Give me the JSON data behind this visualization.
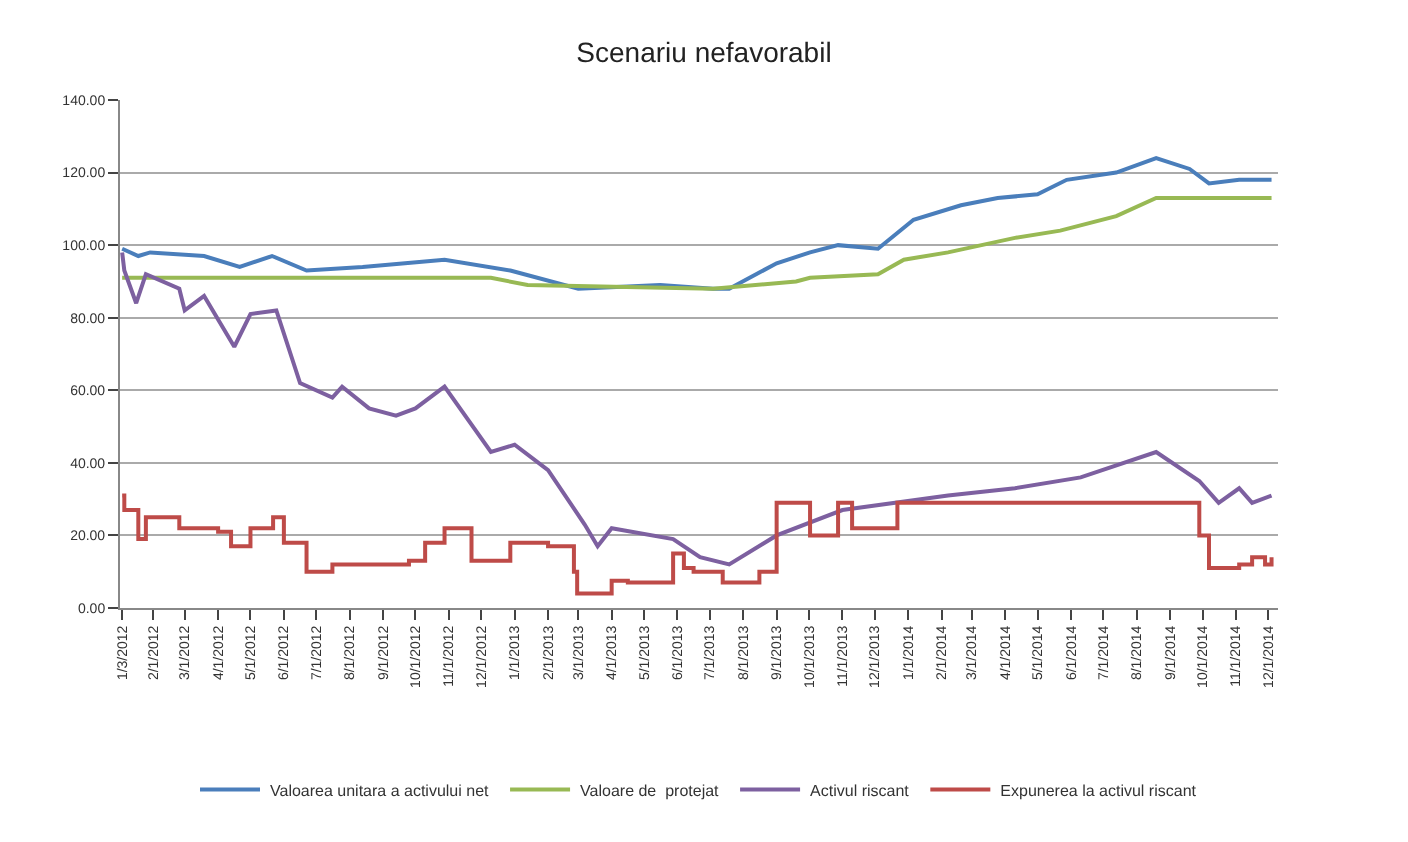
{
  "chart_data": {
    "type": "line",
    "title": "Scenariu nefavorabil",
    "legend": "bottom",
    "grid": "y",
    "ylim": [
      0,
      140
    ],
    "yticks": [
      {
        "value": 0,
        "label": "0.00"
      },
      {
        "value": 20,
        "label": "20.00"
      },
      {
        "value": 40,
        "label": "40.00"
      },
      {
        "value": 60,
        "label": "60.00"
      },
      {
        "value": 80,
        "label": "80.00"
      },
      {
        "value": 100,
        "label": "100.00"
      },
      {
        "value": 120,
        "label": "120.00"
      },
      {
        "value": 140,
        "label": "140.00"
      }
    ],
    "xlim": [
      "2012-01-01",
      "2014-12-10"
    ],
    "xticks": [
      {
        "value": "2012-01-03",
        "label": "1/3/2012"
      },
      {
        "value": "2012-02-01",
        "label": "2/1/2012"
      },
      {
        "value": "2012-03-01",
        "label": "3/1/2012"
      },
      {
        "value": "2012-04-01",
        "label": "4/1/2012"
      },
      {
        "value": "2012-05-01",
        "label": "5/1/2012"
      },
      {
        "value": "2012-06-01",
        "label": "6/1/2012"
      },
      {
        "value": "2012-07-01",
        "label": "7/1/2012"
      },
      {
        "value": "2012-08-01",
        "label": "8/1/2012"
      },
      {
        "value": "2012-09-01",
        "label": "9/1/2012"
      },
      {
        "value": "2012-10-01",
        "label": "10/1/2012"
      },
      {
        "value": "2012-11-01",
        "label": "11/1/2012"
      },
      {
        "value": "2012-12-01",
        "label": "12/1/2012"
      },
      {
        "value": "2013-01-01",
        "label": "1/1/2013"
      },
      {
        "value": "2013-02-01",
        "label": "2/1/2013"
      },
      {
        "value": "2013-03-01",
        "label": "3/1/2013"
      },
      {
        "value": "2013-04-01",
        "label": "4/1/2013"
      },
      {
        "value": "2013-05-01",
        "label": "5/1/2013"
      },
      {
        "value": "2013-06-01",
        "label": "6/1/2013"
      },
      {
        "value": "2013-07-01",
        "label": "7/1/2013"
      },
      {
        "value": "2013-08-01",
        "label": "8/1/2013"
      },
      {
        "value": "2013-09-01",
        "label": "9/1/2013"
      },
      {
        "value": "2013-10-01",
        "label": "10/1/2013"
      },
      {
        "value": "2013-11-01",
        "label": "11/1/2013"
      },
      {
        "value": "2013-12-01",
        "label": "12/1/2013"
      },
      {
        "value": "2014-01-01",
        "label": "1/1/2014"
      },
      {
        "value": "2014-02-01",
        "label": "2/1/2014"
      },
      {
        "value": "2014-03-01",
        "label": "3/1/2014"
      },
      {
        "value": "2014-04-01",
        "label": "4/1/2014"
      },
      {
        "value": "2014-05-01",
        "label": "5/1/2014"
      },
      {
        "value": "2014-06-01",
        "label": "6/1/2014"
      },
      {
        "value": "2014-07-01",
        "label": "7/1/2014"
      },
      {
        "value": "2014-08-01",
        "label": "8/1/2014"
      },
      {
        "value": "2014-09-01",
        "label": "9/1/2014"
      },
      {
        "value": "2014-10-01",
        "label": "10/1/2014"
      },
      {
        "value": "2014-11-01",
        "label": "11/1/2014"
      },
      {
        "value": "2014-12-01",
        "label": "12/1/2014"
      }
    ],
    "series": [
      {
        "name": "Valoarea unitara a activului net",
        "color": "#4a7ebb",
        "x": [
          "2012-01-03",
          "2012-01-18",
          "2012-01-29",
          "2012-03-19",
          "2012-04-21",
          "2012-05-21",
          "2012-06-22",
          "2012-08-13",
          "2012-10-28",
          "2012-12-28",
          "2013-03-01",
          "2013-05-16",
          "2013-07-04",
          "2013-07-19",
          "2013-09-01",
          "2013-10-02",
          "2013-10-28",
          "2013-12-04",
          "2014-01-06",
          "2014-02-19",
          "2014-03-25",
          "2014-05-01",
          "2014-05-28",
          "2014-07-13",
          "2014-08-19",
          "2014-09-19",
          "2014-10-07",
          "2014-11-04",
          "2014-12-04"
        ],
        "values": [
          99,
          97,
          98,
          97,
          94,
          97,
          93,
          94,
          96,
          93,
          88,
          89,
          88,
          88,
          95,
          98,
          100,
          99,
          107,
          111,
          113,
          114,
          118,
          120,
          124,
          121,
          117,
          118,
          118
        ]
      },
      {
        "name": "Valoare de  protejat",
        "color": "#98b954",
        "x": [
          "2012-01-03",
          "2012-12-10",
          "2013-01-13",
          "2013-07-04",
          "2013-09-19",
          "2013-10-02",
          "2013-12-04",
          "2013-12-28",
          "2014-02-07",
          "2014-04-10",
          "2014-05-22",
          "2014-07-13",
          "2014-08-19",
          "2014-12-04"
        ],
        "values": [
          91,
          91,
          89,
          88,
          90,
          91,
          92,
          96,
          98,
          102,
          104,
          108,
          113,
          113
        ]
      },
      {
        "name": "Activul riscant",
        "color": "#7d60a0",
        "x": [
          "2012-01-03",
          "2012-01-05",
          "2012-01-16",
          "2012-01-25",
          "2012-02-25",
          "2012-03-01",
          "2012-03-19",
          "2012-04-16",
          "2012-05-01",
          "2012-05-25",
          "2012-06-16",
          "2012-07-16",
          "2012-07-25",
          "2012-08-19",
          "2012-09-13",
          "2012-10-01",
          "2012-10-28",
          "2012-12-10",
          "2013-01-01",
          "2013-02-01",
          "2013-03-07",
          "2013-03-19",
          "2013-04-01",
          "2013-05-28",
          "2013-06-22",
          "2013-07-19",
          "2013-09-01",
          "2013-11-01",
          "2014-02-07",
          "2014-04-10",
          "2014-06-10",
          "2014-08-19",
          "2014-09-28",
          "2014-10-16",
          "2014-11-04",
          "2014-11-16",
          "2014-12-04"
        ],
        "values": [
          98,
          93,
          84,
          92,
          88,
          82,
          86,
          72,
          81,
          82,
          62,
          58,
          61,
          55,
          53,
          55,
          61,
          43,
          45,
          38,
          23,
          17,
          22,
          19,
          14,
          12,
          20,
          27,
          31,
          33,
          36,
          43,
          35,
          29,
          33,
          29,
          31
        ]
      },
      {
        "name": "Expunerea la activul riscant",
        "color": "#be4b48",
        "type": "step",
        "x": [
          "2012-01-03",
          "2012-01-05",
          "2012-01-18",
          "2012-01-25",
          "2012-02-25",
          "2012-04-01",
          "2012-04-13",
          "2012-05-01",
          "2012-05-22",
          "2012-06-01",
          "2012-06-22",
          "2012-07-16",
          "2012-09-25",
          "2012-10-10",
          "2012-10-28",
          "2012-11-22",
          "2012-12-28",
          "2013-02-01",
          "2013-02-25",
          "2013-02-28",
          "2013-04-01",
          "2013-04-16",
          "2013-05-28",
          "2013-06-07",
          "2013-06-16",
          "2013-07-13",
          "2013-08-16",
          "2013-09-01",
          "2013-10-02",
          "2013-10-28",
          "2013-11-10",
          "2013-12-22",
          "2014-09-04",
          "2014-09-28",
          "2014-10-07",
          "2014-11-04",
          "2014-11-16",
          "2014-11-28",
          "2014-12-04"
        ],
        "values": [
          31,
          27,
          19,
          25,
          22,
          21,
          17,
          22,
          25,
          18,
          10,
          12,
          13,
          18,
          22,
          13,
          18,
          17,
          10,
          4,
          7.5,
          7,
          15,
          11,
          10,
          7,
          10,
          29,
          20,
          29,
          22,
          29,
          29,
          20,
          11,
          12,
          14,
          12,
          14
        ]
      }
    ]
  }
}
